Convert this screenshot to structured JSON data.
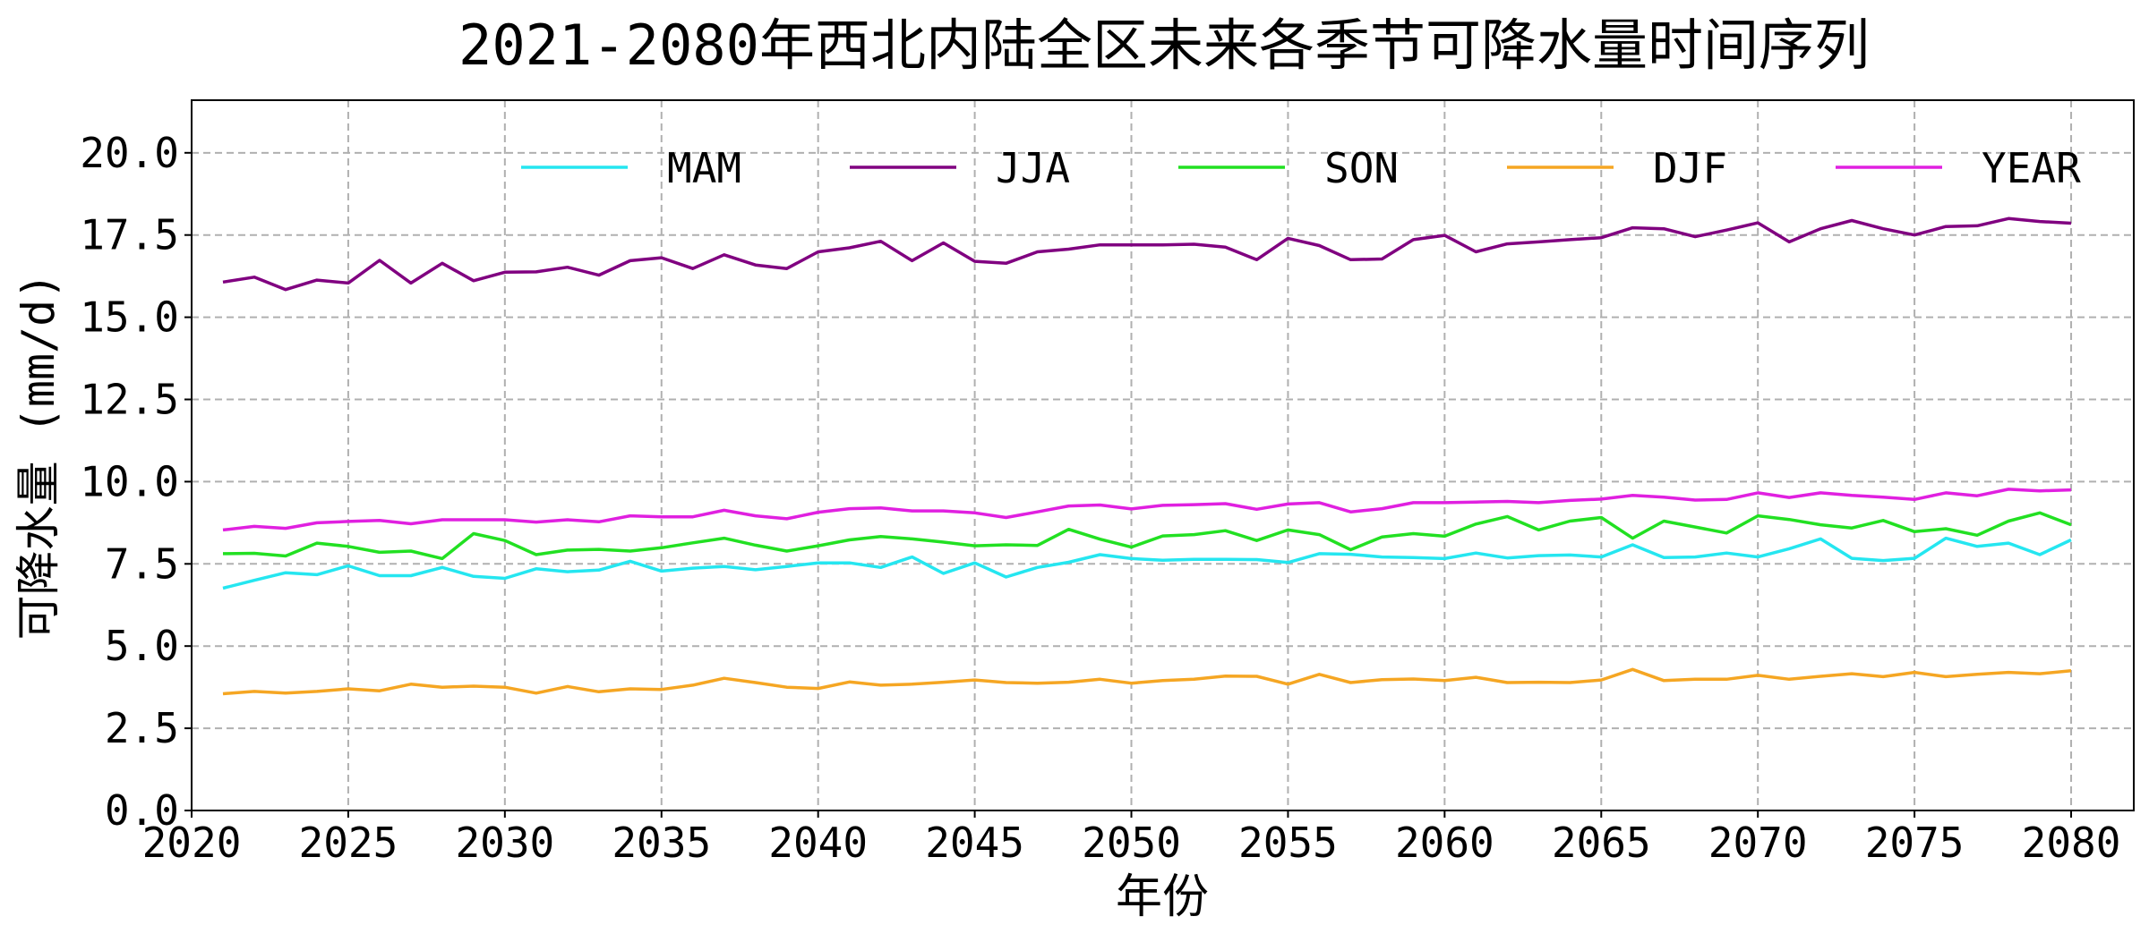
{
  "chart_data": {
    "type": "line",
    "title": "2021-2080年西北内陆全区未来各季节可降水量时间序列",
    "xlabel": "年份",
    "ylabel": "可降水量 (mm/d)",
    "xlim": [
      2020,
      2082
    ],
    "ylim": [
      0,
      21.6
    ],
    "xticks": [
      "2020",
      "2025",
      "2030",
      "2035",
      "2040",
      "2045",
      "2050",
      "2055",
      "2060",
      "2065",
      "2070",
      "2075",
      "2080"
    ],
    "yticks": [
      "0.0",
      "2.5",
      "5.0",
      "7.5",
      "10.0",
      "12.5",
      "15.0",
      "17.5",
      "20.0"
    ],
    "grid": true,
    "grid_style": "dashed",
    "legend_position": "top-right",
    "x": [
      2021,
      2022,
      2023,
      2024,
      2025,
      2026,
      2027,
      2028,
      2029,
      2030,
      2031,
      2032,
      2033,
      2034,
      2035,
      2036,
      2037,
      2038,
      2039,
      2040,
      2041,
      2042,
      2043,
      2044,
      2045,
      2046,
      2047,
      2048,
      2049,
      2050,
      2051,
      2052,
      2053,
      2054,
      2055,
      2056,
      2057,
      2058,
      2059,
      2060,
      2061,
      2062,
      2063,
      2064,
      2065,
      2066,
      2067,
      2068,
      2069,
      2070,
      2071,
      2072,
      2073,
      2074,
      2075,
      2076,
      2077,
      2078,
      2079,
      2080
    ],
    "series": [
      {
        "name": "MAM",
        "color": "#25e6f0",
        "values": [
          6.76,
          7.0,
          7.23,
          7.17,
          7.44,
          7.14,
          7.14,
          7.39,
          7.12,
          7.06,
          7.35,
          7.26,
          7.31,
          7.58,
          7.28,
          7.37,
          7.42,
          7.32,
          7.42,
          7.53,
          7.53,
          7.39,
          7.71,
          7.21,
          7.53,
          7.1,
          7.39,
          7.55,
          7.78,
          7.66,
          7.61,
          7.64,
          7.64,
          7.63,
          7.54,
          7.81,
          7.79,
          7.71,
          7.69,
          7.66,
          7.83,
          7.68,
          7.75,
          7.77,
          7.71,
          8.08,
          7.69,
          7.71,
          7.83,
          7.71,
          7.96,
          8.26,
          7.67,
          7.6,
          7.67,
          8.28,
          8.03,
          8.13,
          7.78,
          8.23
        ]
      },
      {
        "name": "JJA",
        "color": "#800080",
        "values": [
          16.07,
          16.22,
          15.84,
          16.13,
          16.04,
          16.73,
          16.04,
          16.64,
          16.11,
          16.37,
          16.38,
          16.52,
          16.28,
          16.72,
          16.81,
          16.48,
          16.9,
          16.59,
          16.48,
          16.99,
          17.11,
          17.31,
          16.72,
          17.26,
          16.7,
          16.64,
          16.99,
          17.07,
          17.2,
          17.2,
          17.2,
          17.22,
          17.13,
          16.75,
          17.4,
          17.18,
          16.75,
          16.77,
          17.36,
          17.49,
          16.99,
          17.23,
          17.29,
          17.36,
          17.42,
          17.72,
          17.69,
          17.45,
          17.65,
          17.87,
          17.29,
          17.69,
          17.94,
          17.69,
          17.5,
          17.76,
          17.78,
          18.0,
          17.91,
          17.86
        ]
      },
      {
        "name": "SON",
        "color": "#22e022",
        "values": [
          7.81,
          7.82,
          7.74,
          8.13,
          8.03,
          7.85,
          7.89,
          7.66,
          8.42,
          8.21,
          7.78,
          7.92,
          7.94,
          7.89,
          7.99,
          8.14,
          8.28,
          8.07,
          7.89,
          8.05,
          8.23,
          8.33,
          8.26,
          8.16,
          8.05,
          8.08,
          8.06,
          8.55,
          8.25,
          8.01,
          8.35,
          8.39,
          8.51,
          8.21,
          8.53,
          8.39,
          7.93,
          8.32,
          8.42,
          8.34,
          8.71,
          8.94,
          8.53,
          8.8,
          8.91,
          8.28,
          8.8,
          8.62,
          8.44,
          8.96,
          8.85,
          8.69,
          8.59,
          8.82,
          8.48,
          8.57,
          8.37,
          8.8,
          9.05,
          8.69
        ]
      },
      {
        "name": "DJF",
        "color": "#f5a623",
        "values": [
          3.55,
          3.62,
          3.57,
          3.62,
          3.7,
          3.64,
          3.84,
          3.75,
          3.78,
          3.75,
          3.57,
          3.77,
          3.61,
          3.7,
          3.68,
          3.81,
          4.02,
          3.89,
          3.75,
          3.71,
          3.91,
          3.81,
          3.84,
          3.9,
          3.97,
          3.89,
          3.87,
          3.9,
          3.99,
          3.87,
          3.95,
          3.99,
          4.09,
          4.08,
          3.84,
          4.14,
          3.89,
          3.98,
          4.0,
          3.95,
          4.05,
          3.89,
          3.9,
          3.89,
          3.97,
          4.29,
          3.95,
          3.99,
          3.99,
          4.11,
          3.99,
          4.08,
          4.16,
          4.07,
          4.2,
          4.07,
          4.14,
          4.2,
          4.16,
          4.25
        ]
      },
      {
        "name": "YEAR",
        "color": "#e020e0",
        "values": [
          8.53,
          8.64,
          8.58,
          8.75,
          8.79,
          8.82,
          8.72,
          8.84,
          8.84,
          8.84,
          8.77,
          8.84,
          8.78,
          8.96,
          8.93,
          8.93,
          9.13,
          8.96,
          8.87,
          9.07,
          9.18,
          9.2,
          9.11,
          9.11,
          9.05,
          8.91,
          9.08,
          9.26,
          9.29,
          9.17,
          9.28,
          9.3,
          9.33,
          9.16,
          9.32,
          9.36,
          9.08,
          9.18,
          9.36,
          9.36,
          9.38,
          9.4,
          9.36,
          9.43,
          9.47,
          9.58,
          9.53,
          9.44,
          9.46,
          9.66,
          9.52,
          9.66,
          9.58,
          9.53,
          9.46,
          9.66,
          9.57,
          9.77,
          9.72,
          9.75
        ]
      }
    ]
  }
}
